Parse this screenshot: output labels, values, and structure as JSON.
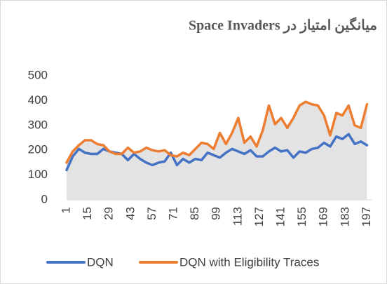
{
  "chart_data": {
    "type": "line",
    "title": "میانگین امتیاز در Space Invaders",
    "x": [
      1,
      5,
      9,
      13,
      17,
      21,
      25,
      29,
      33,
      37,
      41,
      45,
      49,
      53,
      57,
      61,
      65,
      69,
      73,
      77,
      81,
      85,
      89,
      93,
      97,
      101,
      105,
      109,
      113,
      117,
      121,
      125,
      129,
      133,
      137,
      141,
      145,
      149,
      153,
      157,
      161,
      165,
      169,
      173,
      177,
      181,
      185,
      189,
      193,
      197
    ],
    "series": [
      {
        "name": "DQN",
        "color": "#4472c4",
        "values": [
          120,
          175,
          205,
          190,
          185,
          185,
          205,
          195,
          190,
          185,
          160,
          185,
          165,
          150,
          140,
          150,
          155,
          190,
          140,
          165,
          150,
          165,
          160,
          190,
          180,
          170,
          190,
          205,
          195,
          185,
          200,
          175,
          175,
          195,
          210,
          195,
          200,
          170,
          195,
          190,
          205,
          210,
          230,
          215,
          255,
          245,
          265,
          225,
          235,
          220
        ]
      },
      {
        "name": "DQN with Eligibility Traces",
        "color": "#ed7d31",
        "values": [
          150,
          195,
          220,
          240,
          240,
          225,
          220,
          195,
          185,
          185,
          210,
          190,
          195,
          210,
          200,
          195,
          200,
          180,
          175,
          190,
          180,
          205,
          230,
          225,
          205,
          270,
          225,
          270,
          330,
          230,
          255,
          215,
          280,
          380,
          305,
          330,
          290,
          330,
          380,
          395,
          385,
          380,
          340,
          260,
          350,
          340,
          380,
          300,
          290,
          385
        ]
      }
    ],
    "xlim": [
      1,
      200
    ],
    "xticks": [
      1,
      15,
      29,
      43,
      57,
      71,
      85,
      99,
      113,
      127,
      141,
      155,
      169,
      183,
      197
    ],
    "ylim": [
      0,
      500
    ],
    "yticks": [
      0,
      100,
      200,
      300,
      400,
      500
    ],
    "legend": "bottom"
  }
}
